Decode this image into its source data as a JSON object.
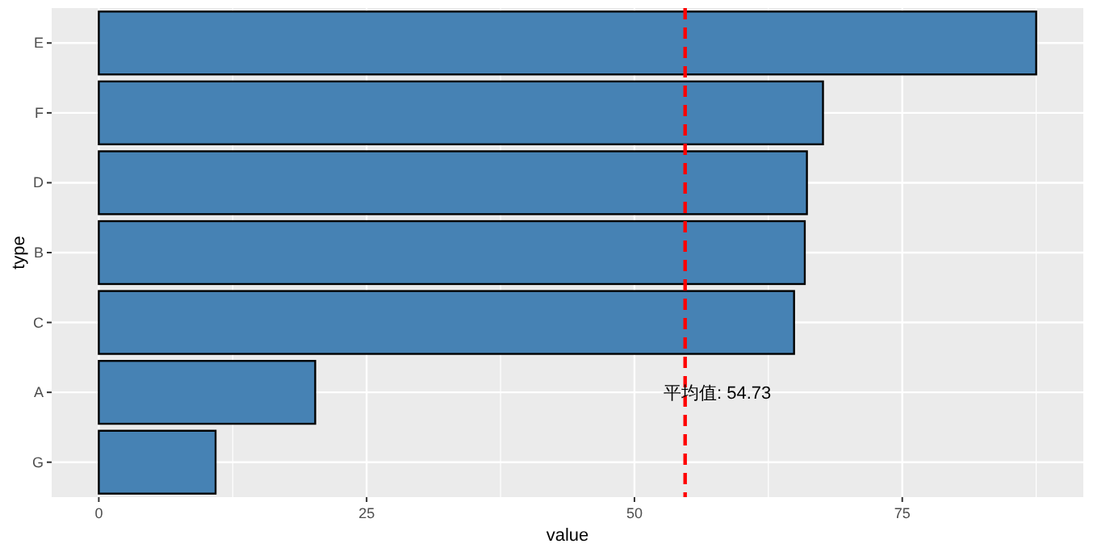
{
  "chart_data": {
    "type": "bar",
    "orientation": "horizontal",
    "xlabel": "value",
    "ylabel": "type",
    "categories": [
      "E",
      "F",
      "D",
      "B",
      "C",
      "A",
      "G"
    ],
    "values": [
      87.5,
      67.6,
      66.1,
      65.9,
      64.9,
      20.2,
      10.9
    ],
    "color": "#4682b4",
    "xlim": [
      -4.4,
      91.9
    ],
    "xticks": [
      0,
      25,
      50,
      75
    ],
    "grid": true,
    "ref_lines": [
      {
        "axis": "x",
        "value": 54.73,
        "label": "平均值: 54.73",
        "color": "#ff0000",
        "line_style": "dashed"
      }
    ]
  }
}
